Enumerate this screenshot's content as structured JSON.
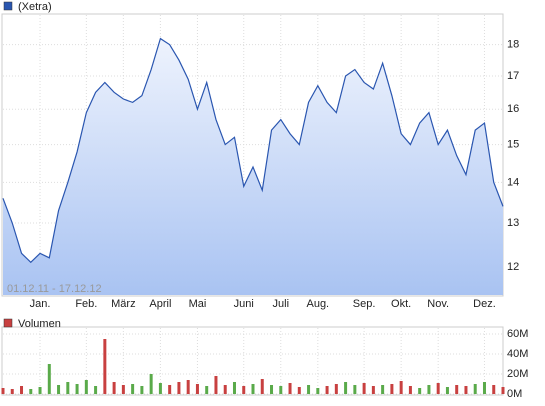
{
  "chart_data": [
    {
      "type": "line",
      "log_scale": true,
      "grid": true,
      "date_range": "01.12.11 - 17.12.12",
      "categories": [
        null,
        null,
        null,
        null,
        "Jan.",
        null,
        null,
        null,
        null,
        "Feb.",
        null,
        null,
        null,
        "März",
        null,
        null,
        null,
        "April",
        null,
        null,
        null,
        "Mai",
        null,
        null,
        null,
        null,
        "Juni",
        null,
        null,
        null,
        "Juli",
        null,
        null,
        null,
        "Aug.",
        null,
        null,
        null,
        null,
        "Sep.",
        null,
        null,
        null,
        "Okt.",
        null,
        null,
        null,
        "Nov.",
        null,
        null,
        null,
        null,
        "Dez.",
        null,
        null
      ],
      "series": [
        {
          "name": "(Xetra)",
          "color": "#2a56b0",
          "values": [
            13.6,
            13.0,
            12.3,
            12.1,
            12.3,
            12.2,
            13.3,
            14.0,
            14.8,
            15.9,
            16.5,
            16.8,
            16.5,
            16.3,
            16.2,
            16.4,
            17.2,
            18.2,
            18.0,
            17.5,
            16.9,
            16.0,
            16.8,
            15.7,
            15.0,
            15.2,
            13.9,
            14.4,
            13.8,
            15.4,
            15.7,
            15.3,
            15.0,
            16.2,
            16.7,
            16.2,
            15.9,
            17.0,
            17.2,
            16.8,
            16.6,
            17.4,
            16.4,
            15.3,
            15.0,
            15.6,
            15.9,
            15.0,
            15.4,
            14.7,
            14.2,
            15.4,
            15.6,
            14.0,
            13.4
          ]
        }
      ],
      "ylim": [
        11.4,
        19.0
      ],
      "yticks": [
        12,
        13,
        14,
        15,
        16,
        17,
        18
      ]
    },
    {
      "type": "bar",
      "grid": true,
      "series": [
        {
          "name": "Volumen",
          "color": "#c84040",
          "values": [
            6,
            5,
            8,
            5,
            7,
            30,
            9,
            12,
            10,
            14,
            8,
            55,
            12,
            9,
            10,
            8,
            20,
            11,
            9,
            12,
            14,
            10,
            8,
            18,
            9,
            12,
            8,
            10,
            15,
            9,
            8,
            11,
            7,
            9,
            6,
            8,
            10,
            12,
            9,
            11,
            8,
            9,
            10,
            13,
            8,
            6,
            9,
            11,
            7,
            9,
            8,
            10,
            12,
            9,
            7
          ],
          "colors": [
            "#c84040",
            "#c84040",
            "#c84040",
            "#5aaa4a",
            "#5aaa4a",
            "#5aaa4a",
            "#5aaa4a",
            "#5aaa4a",
            "#5aaa4a",
            "#5aaa4a",
            "#5aaa4a",
            "#c84040",
            "#c84040",
            "#c84040",
            "#5aaa4a",
            "#5aaa4a",
            "#5aaa4a",
            "#5aaa4a",
            "#c84040",
            "#c84040",
            "#c84040",
            "#c84040",
            "#5aaa4a",
            "#c84040",
            "#c84040",
            "#5aaa4a",
            "#c84040",
            "#5aaa4a",
            "#c84040",
            "#5aaa4a",
            "#5aaa4a",
            "#c84040",
            "#c84040",
            "#5aaa4a",
            "#5aaa4a",
            "#c84040",
            "#c84040",
            "#5aaa4a",
            "#5aaa4a",
            "#c84040",
            "#c84040",
            "#5aaa4a",
            "#c84040",
            "#c84040",
            "#c84040",
            "#5aaa4a",
            "#5aaa4a",
            "#c84040",
            "#5aaa4a",
            "#c84040",
            "#c84040",
            "#5aaa4a",
            "#5aaa4a",
            "#c84040",
            "#c84040"
          ]
        }
      ],
      "ylim": [
        0,
        66
      ],
      "yticks": [
        {
          "value": 0,
          "label": "0M"
        },
        {
          "value": 20,
          "label": "20M"
        },
        {
          "value": 40,
          "label": "40M"
        },
        {
          "value": 60,
          "label": "60M"
        }
      ]
    }
  ]
}
